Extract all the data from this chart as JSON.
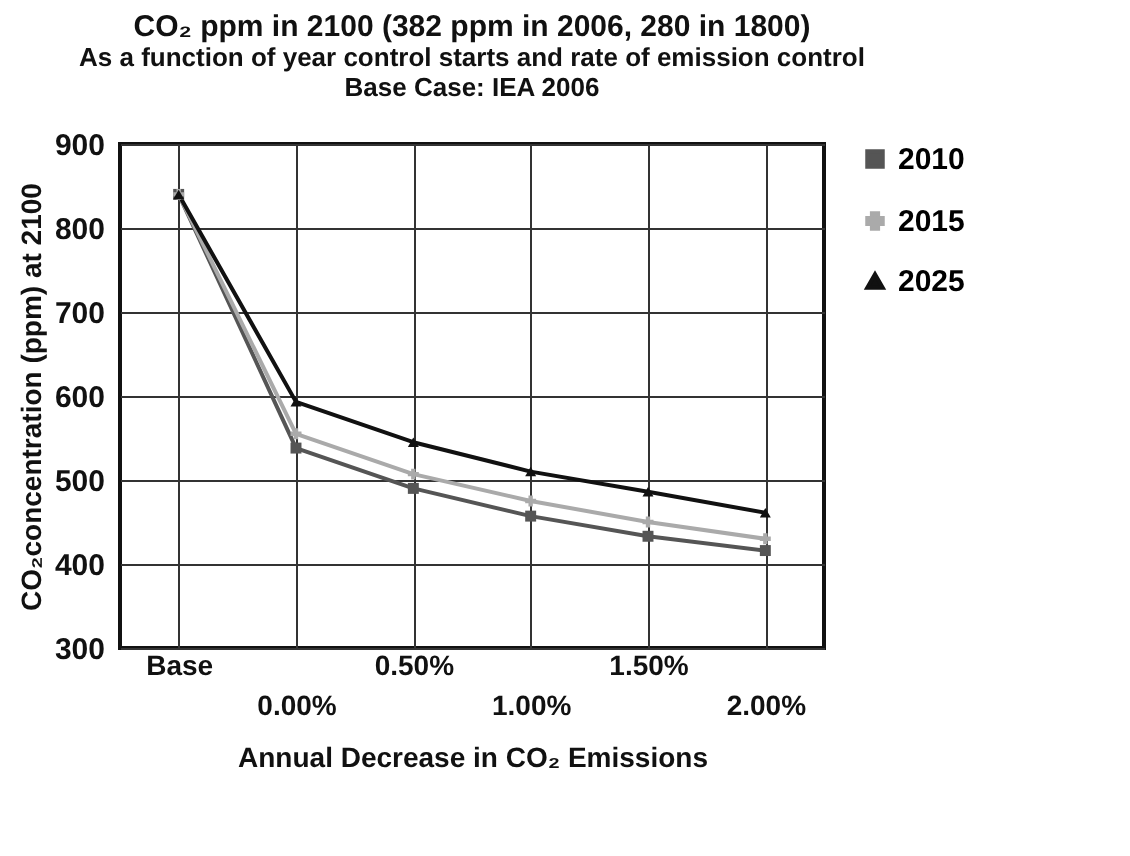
{
  "chart_data": {
    "type": "line",
    "title": "CO₂ ppm in 2100 (382 ppm in 2006, 280 in 1800)",
    "subtitle": "As a function of year control starts and rate of emission control\nBase Case: IEA 2006",
    "xlabel": "Annual Decrease in CO₂ Emissions",
    "ylabel": "CO₂concentration (ppm) at 2100",
    "categories": [
      "Base",
      "0.00%",
      "0.50%",
      "1.00%",
      "1.50%",
      "2.00%"
    ],
    "series": [
      {
        "name": "2010",
        "color": "#555555",
        "marker": "square",
        "values": [
          840,
          538,
          490,
          457,
          433,
          416
        ]
      },
      {
        "name": "2015",
        "color": "#aaaaaa",
        "marker": "cross",
        "values": [
          840,
          555,
          507,
          475,
          450,
          430
        ]
      },
      {
        "name": "2025",
        "color": "#111111",
        "marker": "triangle",
        "values": [
          840,
          593,
          545,
          510,
          486,
          461
        ]
      }
    ],
    "ylim": [
      300,
      900
    ],
    "yticks": [
      300,
      400,
      500,
      600,
      700,
      800,
      900
    ],
    "grid": true,
    "legend": "right",
    "line_style": "solid"
  }
}
